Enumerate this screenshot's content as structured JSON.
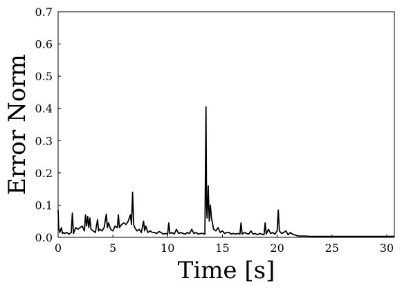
{
  "chart_data": {
    "type": "line",
    "xlabel": "Time [s]",
    "ylabel": "Error Norm",
    "xlim": [
      0,
      30.7
    ],
    "ylim": [
      0,
      0.7
    ],
    "xticks": [
      0,
      5,
      10,
      15,
      20,
      25,
      30
    ],
    "yticks": [
      0.0,
      0.1,
      0.2,
      0.3,
      0.4,
      0.5,
      0.6,
      0.7
    ],
    "grid": false,
    "series": [
      {
        "color": "#000000",
        "x": [
          0.0,
          0.05,
          0.15,
          0.3,
          0.4,
          0.5,
          0.6,
          0.8,
          1.0,
          1.2,
          1.3,
          1.4,
          1.6,
          1.8,
          2.0,
          2.2,
          2.4,
          2.5,
          2.6,
          2.7,
          2.8,
          2.9,
          3.0,
          3.2,
          3.4,
          3.6,
          3.7,
          3.8,
          4.0,
          4.2,
          4.4,
          4.5,
          4.6,
          4.8,
          5.0,
          5.2,
          5.4,
          5.5,
          5.6,
          5.8,
          6.0,
          6.2,
          6.4,
          6.6,
          6.7,
          6.8,
          6.9,
          7.0,
          7.2,
          7.4,
          7.6,
          7.8,
          7.9,
          8.0,
          8.2,
          8.4,
          8.6,
          8.8,
          9.0,
          9.2,
          9.4,
          9.6,
          9.8,
          10.0,
          10.1,
          10.2,
          10.4,
          10.6,
          10.8,
          11.0,
          11.2,
          11.4,
          11.6,
          11.8,
          12.0,
          12.2,
          12.4,
          12.6,
          12.8,
          13.0,
          13.2,
          13.4,
          13.45,
          13.5,
          13.55,
          13.6,
          13.7,
          13.8,
          13.9,
          14.0,
          14.2,
          14.4,
          14.6,
          14.8,
          15.0,
          15.2,
          15.4,
          15.6,
          15.8,
          16.0,
          16.2,
          16.4,
          16.6,
          16.7,
          16.8,
          17.0,
          17.2,
          17.4,
          17.6,
          17.8,
          18.0,
          18.2,
          18.4,
          18.6,
          18.8,
          18.9,
          19.0,
          19.2,
          19.4,
          19.6,
          19.8,
          20.0,
          20.1,
          20.2,
          20.4,
          20.6,
          20.8,
          21.0,
          21.2,
          21.4,
          21.6,
          21.8,
          22.0,
          22.5,
          23.0,
          24.0,
          25.0,
          26.0,
          27.0,
          28.0,
          29.0,
          30.0,
          30.7
        ],
        "y": [
          0.085,
          0.03,
          0.015,
          0.03,
          0.012,
          0.015,
          0.012,
          0.015,
          0.01,
          0.015,
          0.075,
          0.012,
          0.03,
          0.025,
          0.03,
          0.035,
          0.02,
          0.07,
          0.035,
          0.065,
          0.03,
          0.06,
          0.025,
          0.02,
          0.015,
          0.055,
          0.02,
          0.025,
          0.02,
          0.03,
          0.072,
          0.03,
          0.045,
          0.025,
          0.02,
          0.035,
          0.03,
          0.07,
          0.03,
          0.04,
          0.045,
          0.04,
          0.05,
          0.07,
          0.04,
          0.14,
          0.04,
          0.03,
          0.02,
          0.025,
          0.015,
          0.05,
          0.02,
          0.035,
          0.015,
          0.02,
          0.015,
          0.015,
          0.012,
          0.018,
          0.015,
          0.01,
          0.012,
          0.01,
          0.045,
          0.012,
          0.015,
          0.01,
          0.025,
          0.012,
          0.015,
          0.012,
          0.01,
          0.015,
          0.012,
          0.025,
          0.012,
          0.015,
          0.01,
          0.012,
          0.012,
          0.01,
          0.2,
          0.405,
          0.1,
          0.06,
          0.16,
          0.05,
          0.1,
          0.06,
          0.025,
          0.02,
          0.03,
          0.015,
          0.02,
          0.012,
          0.015,
          0.015,
          0.01,
          0.012,
          0.01,
          0.012,
          0.01,
          0.045,
          0.01,
          0.015,
          0.012,
          0.01,
          0.02,
          0.01,
          0.012,
          0.008,
          0.012,
          0.01,
          0.008,
          0.045,
          0.01,
          0.025,
          0.012,
          0.015,
          0.01,
          0.02,
          0.085,
          0.02,
          0.012,
          0.015,
          0.02,
          0.008,
          0.015,
          0.01,
          0.008,
          0.005,
          0.004,
          0.004,
          0.003,
          0.003,
          0.003,
          0.003,
          0.003,
          0.003,
          0.003,
          0.003,
          0.003
        ]
      }
    ]
  }
}
